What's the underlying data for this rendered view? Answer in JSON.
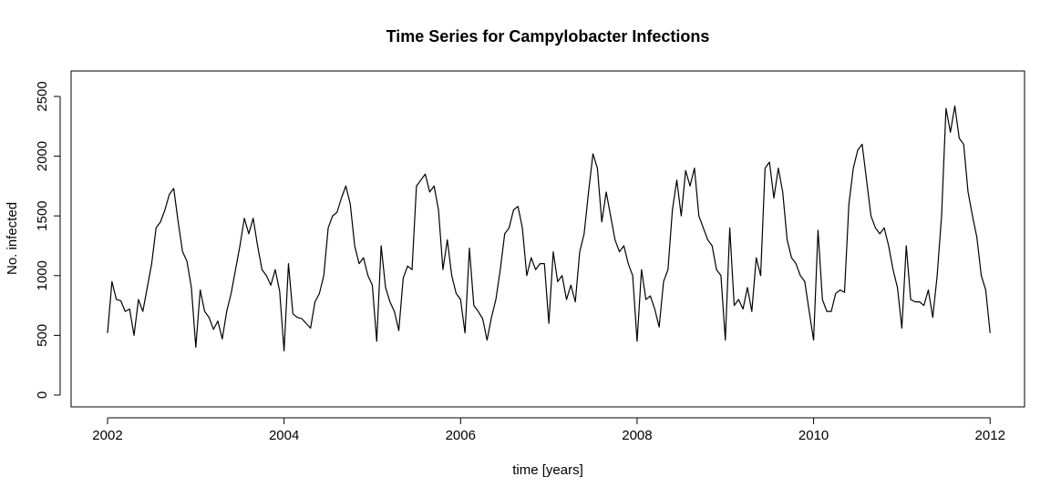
{
  "chart_data": {
    "type": "line",
    "title": "Time Series for Campylobacter Infections",
    "x_label": "time [years]",
    "y_label": "No. infected",
    "xlim": [
      2001.587,
      2012.39
    ],
    "ylim": [
      -99,
      2713
    ],
    "xticks": [
      2002,
      2004,
      2006,
      2008,
      2010,
      2012
    ],
    "yticks": [
      0,
      500,
      1000,
      1500,
      2000,
      2500
    ],
    "grid": false,
    "series": [
      {
        "color": "#000000",
        "x": [
          2002.0,
          2002.05,
          2002.1,
          2002.15,
          2002.2,
          2002.25,
          2002.3,
          2002.35,
          2002.4,
          2002.45,
          2002.5,
          2002.55,
          2002.6,
          2002.65,
          2002.7,
          2002.75,
          2002.8,
          2002.85,
          2002.9,
          2002.95,
          2003.0,
          2003.05,
          2003.1,
          2003.15,
          2003.2,
          2003.25,
          2003.3,
          2003.35,
          2003.4,
          2003.45,
          2003.5,
          2003.55,
          2003.6,
          2003.65,
          2003.7,
          2003.75,
          2003.8,
          2003.85,
          2003.9,
          2003.95,
          2004.0,
          2004.05,
          2004.1,
          2004.15,
          2004.2,
          2004.25,
          2004.3,
          2004.35,
          2004.4,
          2004.45,
          2004.5,
          2004.55,
          2004.6,
          2004.65,
          2004.7,
          2004.75,
          2004.8,
          2004.85,
          2004.9,
          2004.95,
          2005.0,
          2005.05,
          2005.1,
          2005.15,
          2005.2,
          2005.25,
          2005.3,
          2005.35,
          2005.4,
          2005.45,
          2005.5,
          2005.55,
          2005.6,
          2005.65,
          2005.7,
          2005.75,
          2005.8,
          2005.85,
          2005.9,
          2005.95,
          2006.0,
          2006.05,
          2006.1,
          2006.15,
          2006.2,
          2006.25,
          2006.3,
          2006.35,
          2006.4,
          2006.45,
          2006.5,
          2006.55,
          2006.6,
          2006.65,
          2006.7,
          2006.75,
          2006.8,
          2006.85,
          2006.9,
          2006.95,
          2007.0,
          2007.05,
          2007.1,
          2007.15,
          2007.2,
          2007.25,
          2007.3,
          2007.35,
          2007.4,
          2007.45,
          2007.5,
          2007.55,
          2007.6,
          2007.65,
          2007.7,
          2007.75,
          2007.8,
          2007.85,
          2007.9,
          2007.95,
          2008.0,
          2008.05,
          2008.1,
          2008.15,
          2008.2,
          2008.25,
          2008.3,
          2008.35,
          2008.4,
          2008.45,
          2008.5,
          2008.55,
          2008.6,
          2008.65,
          2008.7,
          2008.75,
          2008.8,
          2008.85,
          2008.9,
          2008.95,
          2009.0,
          2009.05,
          2009.1,
          2009.15,
          2009.2,
          2009.25,
          2009.3,
          2009.35,
          2009.4,
          2009.45,
          2009.5,
          2009.55,
          2009.6,
          2009.65,
          2009.7,
          2009.75,
          2009.8,
          2009.85,
          2009.9,
          2009.95,
          2010.0,
          2010.05,
          2010.1,
          2010.15,
          2010.2,
          2010.25,
          2010.3,
          2010.35,
          2010.4,
          2010.45,
          2010.5,
          2010.55,
          2010.6,
          2010.65,
          2010.7,
          2010.75,
          2010.8,
          2010.85,
          2010.9,
          2010.95,
          2011.0,
          2011.05,
          2011.1,
          2011.15,
          2011.2,
          2011.25,
          2011.3,
          2011.35,
          2011.4,
          2011.45,
          2011.5,
          2011.55,
          2011.6,
          2011.65,
          2011.7,
          2011.75,
          2011.8,
          2011.85,
          2011.9,
          2011.95,
          2012.0
        ],
        "values": [
          520,
          950,
          800,
          790,
          700,
          720,
          500,
          800,
          700,
          900,
          1100,
          1400,
          1450,
          1550,
          1680,
          1730,
          1450,
          1200,
          1120,
          900,
          400,
          880,
          700,
          650,
          550,
          620,
          470,
          700,
          850,
          1050,
          1250,
          1480,
          1350,
          1480,
          1250,
          1050,
          1000,
          920,
          1050,
          870,
          370,
          1100,
          680,
          650,
          640,
          600,
          560,
          780,
          850,
          1000,
          1400,
          1500,
          1530,
          1650,
          1750,
          1600,
          1250,
          1100,
          1150,
          1000,
          920,
          450,
          1250,
          900,
          780,
          700,
          540,
          980,
          1080,
          1050,
          1750,
          1800,
          1850,
          1700,
          1750,
          1550,
          1050,
          1300,
          1000,
          850,
          800,
          520,
          1230,
          750,
          700,
          640,
          460,
          650,
          800,
          1050,
          1350,
          1400,
          1550,
          1580,
          1400,
          1000,
          1150,
          1050,
          1100,
          1100,
          600,
          1200,
          950,
          1000,
          800,
          920,
          780,
          1200,
          1350,
          1700,
          2020,
          1900,
          1450,
          1700,
          1500,
          1300,
          1200,
          1250,
          1100,
          1000,
          450,
          1050,
          800,
          830,
          720,
          570,
          950,
          1050,
          1550,
          1800,
          1500,
          1880,
          1750,
          1900,
          1500,
          1400,
          1300,
          1250,
          1050,
          1000,
          460,
          1400,
          750,
          800,
          720,
          900,
          700,
          1150,
          1000,
          1900,
          1950,
          1650,
          1900,
          1700,
          1300,
          1150,
          1100,
          1000,
          950,
          700,
          460,
          1380,
          800,
          700,
          700,
          850,
          880,
          860,
          1600,
          1900,
          2050,
          2100,
          1800,
          1500,
          1400,
          1350,
          1400,
          1250,
          1050,
          900,
          560,
          1250,
          800,
          780,
          780,
          750,
          880,
          650,
          1000,
          1500,
          2400,
          2200,
          2420,
          2150,
          2100,
          1700,
          1500,
          1320,
          1000,
          880,
          520
        ]
      }
    ]
  }
}
